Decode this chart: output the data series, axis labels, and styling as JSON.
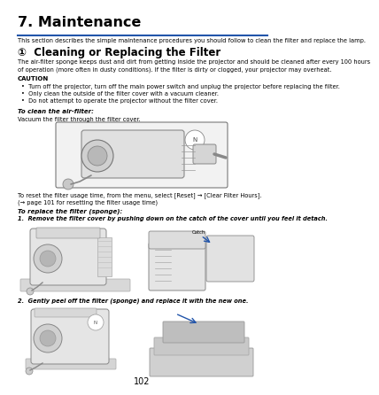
{
  "title": "7. Maintenance",
  "title_fontsize": 11.5,
  "section_intro": "This section describes the simple maintenance procedures you should follow to clean the filter and replace the lamp.",
  "section_heading": "①  Cleaning or Replacing the Filter",
  "section_heading_fontsize": 8.5,
  "body1_line1": "The air-filter sponge keeps dust and dirt from getting inside the projector and should be cleaned after every 100 hours",
  "body1_line2": "of operation (more often in dusty conditions). If the filter is dirty or clogged, your projector may overheat.",
  "caution_label": "CAUTION",
  "caution_bullets": [
    "Turn off the projector, turn off the main power switch and unplug the projector before replacing the filter.",
    "Only clean the outside of the filter cover with a vacuum cleaner.",
    "Do not attempt to operate the projector without the filter cover."
  ],
  "clean_label": "To clean the air-filter:",
  "clean_body": "Vacuum the filter through the filter cover.",
  "reset_line1": "To reset the filter usage time, from the menu, select [Reset] → [Clear Filter Hours].",
  "reset_line2": "(→ page 101 for resetting the filter usage time)",
  "replace_label": "To replace the filter (sponge):",
  "step1": "1.  Remove the filter cover by pushing down on the catch of the cover until you feel it detach.",
  "catch_label": "Catch",
  "step2": "2.  Gently peel off the filter (sponge) and replace it with the new one.",
  "page_number": "102",
  "bg_color": "#ffffff",
  "text_color": "#000000",
  "line_color": "#2255aa",
  "body_fontsize": 4.8,
  "caution_fontsize": 5.0,
  "small_fontsize": 4.2,
  "img_color": "#e8e8e8",
  "img_edge": "#666666"
}
